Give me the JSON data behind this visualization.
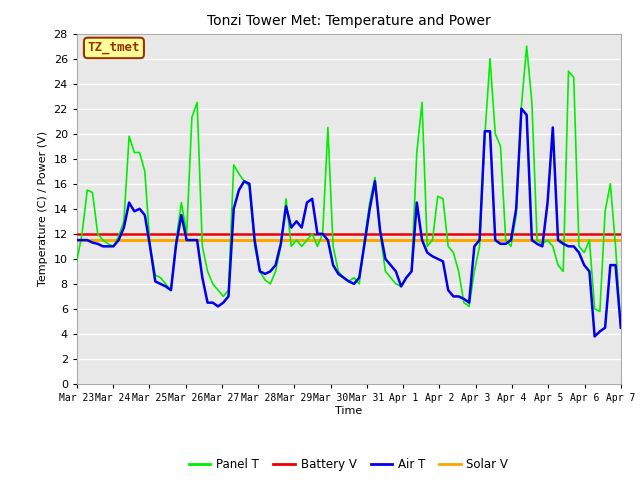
{
  "title": "Tonzi Tower Met: Temperature and Power",
  "xlabel": "Time",
  "ylabel": "Temperature (C) / Power (V)",
  "ylim": [
    0,
    28
  ],
  "yticks": [
    0,
    2,
    4,
    6,
    8,
    10,
    12,
    14,
    16,
    18,
    20,
    22,
    24,
    26,
    28
  ],
  "annotation_text": "TZ_tmet",
  "annotation_bg": "#FFFF99",
  "annotation_border": "#993300",
  "fig_bg": "#FFFFFF",
  "plot_bg": "#E8E8E8",
  "grid_color": "#FFFFFF",
  "legend_labels": [
    "Panel T",
    "Battery V",
    "Air T",
    "Solar V"
  ],
  "line_colors": {
    "panel_t": "#00EE00",
    "battery_v": "#EE0000",
    "air_t": "#0000EE",
    "solar_v": "#FFA500"
  },
  "line_widths": {
    "panel_t": 1.2,
    "battery_v": 1.8,
    "air_t": 1.8,
    "solar_v": 2.2
  },
  "x_tick_labels": [
    "Mar 23",
    "Mar 24",
    "Mar 25",
    "Mar 26",
    "Mar 27",
    "Mar 28",
    "Mar 29",
    "Mar 30",
    "Mar 31",
    "Apr 1",
    "Apr 2",
    "Apr 3",
    "Apr 4",
    "Apr 5",
    "Apr 6",
    "Apr 7"
  ],
  "panel_t": [
    9.8,
    12.0,
    15.5,
    15.3,
    12.0,
    11.5,
    11.2,
    11.0,
    11.8,
    13.0,
    19.8,
    18.5,
    18.5,
    17.0,
    11.0,
    8.7,
    8.5,
    8.0,
    7.5,
    11.5,
    14.5,
    12.0,
    21.3,
    22.5,
    11.0,
    9.0,
    8.0,
    7.5,
    7.0,
    7.5,
    17.5,
    16.8,
    16.2,
    15.8,
    11.0,
    9.0,
    8.3,
    8.0,
    9.0,
    11.0,
    14.8,
    11.0,
    11.5,
    11.0,
    11.5,
    12.0,
    11.0,
    12.0,
    20.5,
    11.0,
    9.0,
    8.5,
    8.2,
    8.5,
    8.0,
    11.5,
    14.5,
    16.5,
    12.0,
    9.0,
    8.5,
    8.0,
    7.8,
    8.5,
    9.0,
    18.5,
    22.5,
    11.0,
    11.5,
    15.0,
    14.8,
    11.0,
    10.5,
    9.0,
    6.5,
    6.2,
    9.0,
    11.0,
    19.8,
    26.0,
    20.0,
    19.0,
    11.5,
    11.0,
    13.5,
    22.2,
    27.0,
    22.5,
    11.5,
    11.2,
    11.5,
    11.0,
    9.5,
    9.0,
    25.0,
    24.5,
    11.0,
    10.5,
    11.5,
    6.0,
    5.8,
    13.8,
    16.0,
    11.0,
    4.5
  ],
  "battery_v": [
    12.0,
    12.0,
    12.0,
    12.0,
    12.0,
    12.0,
    12.0,
    12.0,
    12.0,
    12.0,
    12.0,
    12.0,
    12.0,
    12.0,
    12.0,
    12.0,
    12.0,
    12.0,
    12.0,
    12.0,
    12.0,
    12.0,
    12.0,
    12.0,
    12.0,
    12.0,
    12.0,
    12.0,
    12.0,
    12.0,
    12.0,
    12.0,
    12.0,
    12.0,
    12.0,
    12.0,
    12.0,
    12.0,
    12.0,
    12.0,
    12.0,
    12.0,
    12.0,
    12.0,
    12.0,
    12.0,
    12.0,
    12.0,
    12.0,
    12.0,
    12.0,
    12.0,
    12.0,
    12.0,
    12.0,
    12.0,
    12.0,
    12.0,
    12.0,
    12.0,
    12.0,
    12.0,
    12.0,
    12.0,
    12.0,
    12.0,
    12.0,
    12.0,
    12.0,
    12.0,
    12.0,
    12.0,
    12.0,
    12.0,
    12.0,
    12.0,
    12.0,
    12.0,
    12.0,
    12.0,
    12.0,
    12.0,
    12.0,
    12.0,
    12.0,
    12.0,
    12.0,
    12.0,
    12.0,
    12.0,
    12.0,
    12.0,
    12.0,
    12.0,
    12.0,
    12.0,
    12.0,
    12.0,
    12.0,
    12.0,
    12.0,
    12.0,
    12.0,
    12.0,
    12.0
  ],
  "air_t": [
    11.5,
    11.5,
    11.5,
    11.3,
    11.2,
    11.0,
    11.0,
    11.0,
    11.5,
    12.5,
    14.5,
    13.8,
    14.0,
    13.5,
    11.0,
    8.2,
    8.0,
    7.8,
    7.5,
    11.2,
    13.5,
    11.5,
    11.5,
    11.5,
    8.5,
    6.5,
    6.5,
    6.2,
    6.5,
    7.0,
    14.0,
    15.5,
    16.2,
    16.0,
    11.5,
    9.0,
    8.8,
    9.0,
    9.5,
    11.2,
    14.2,
    12.5,
    13.0,
    12.5,
    14.5,
    14.8,
    12.0,
    12.0,
    11.5,
    9.5,
    8.8,
    8.5,
    8.2,
    8.0,
    8.5,
    11.2,
    14.0,
    16.2,
    12.2,
    10.0,
    9.5,
    9.0,
    7.8,
    8.5,
    9.0,
    14.5,
    11.5,
    10.5,
    10.2,
    10.0,
    9.8,
    7.5,
    7.0,
    7.0,
    6.8,
    6.5,
    11.0,
    11.5,
    20.2,
    20.2,
    11.5,
    11.2,
    11.2,
    11.5,
    14.0,
    22.0,
    21.5,
    11.5,
    11.2,
    11.0,
    14.5,
    20.5,
    11.5,
    11.2,
    11.0,
    11.0,
    10.5,
    9.5,
    9.0,
    3.8,
    4.2,
    4.5,
    9.5,
    9.5,
    4.5
  ],
  "solar_v": [
    11.5,
    11.5,
    11.5,
    11.5,
    11.5,
    11.5,
    11.5,
    11.5,
    11.5,
    11.5,
    11.5,
    11.5,
    11.5,
    11.5,
    11.5,
    11.5,
    11.5,
    11.5,
    11.5,
    11.5,
    11.5,
    11.5,
    11.5,
    11.5,
    11.5,
    11.5,
    11.5,
    11.5,
    11.5,
    11.5,
    11.5,
    11.5,
    11.5,
    11.5,
    11.5,
    11.5,
    11.5,
    11.5,
    11.5,
    11.5,
    11.5,
    11.5,
    11.5,
    11.5,
    11.5,
    11.5,
    11.5,
    11.5,
    11.5,
    11.5,
    11.5,
    11.5,
    11.5,
    11.5,
    11.5,
    11.5,
    11.5,
    11.5,
    11.5,
    11.5,
    11.5,
    11.5,
    11.5,
    11.5,
    11.5,
    11.5,
    11.5,
    11.5,
    11.5,
    11.5,
    11.5,
    11.5,
    11.5,
    11.5,
    11.5,
    11.5,
    11.5,
    11.5,
    11.5,
    11.5,
    11.5,
    11.5,
    11.5,
    11.5,
    11.5,
    11.5,
    11.5,
    11.5,
    11.5,
    11.5,
    11.5,
    11.5,
    11.5,
    11.5,
    11.5,
    11.5,
    11.5,
    11.5,
    11.5,
    11.5,
    11.5,
    11.5,
    11.5,
    11.5,
    11.5
  ]
}
